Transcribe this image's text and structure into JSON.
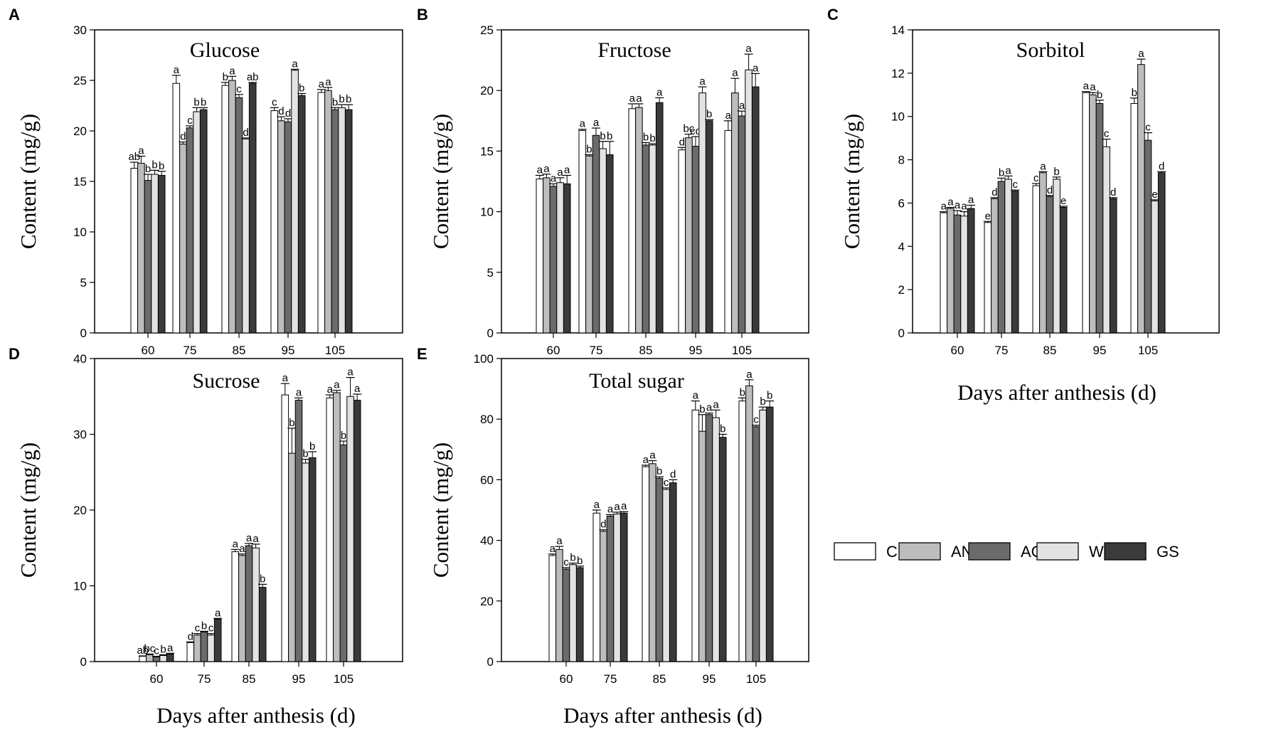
{
  "chart_data": [
    {
      "panel": "A",
      "type": "bar",
      "title": "Glucose",
      "ylabel": "Content (mg/g)",
      "xlabel": "",
      "ylim": [
        0,
        30
      ],
      "yticks": [
        0,
        5,
        10,
        15,
        20,
        25,
        30
      ],
      "categories": [
        "60",
        "75",
        "85",
        "95",
        "105"
      ],
      "series": [
        {
          "name": "CK",
          "values": [
            16.3,
            24.7,
            24.5,
            22.0,
            23.8
          ],
          "errors": [
            0.6,
            0.8,
            0.3,
            0.3,
            0.3
          ],
          "letters": [
            "ab",
            "a",
            "b",
            "c",
            "a"
          ]
        },
        {
          "name": "AN",
          "values": [
            16.8,
            18.7,
            25.0,
            21.0,
            24.0
          ],
          "errors": [
            0.7,
            0.2,
            0.4,
            0.4,
            0.3
          ],
          "letters": [
            "a",
            "d",
            "a",
            "d",
            "a"
          ]
        },
        {
          "name": "AG",
          "values": [
            15.1,
            20.3,
            23.3,
            20.9,
            22.1
          ],
          "errors": [
            0.6,
            0.2,
            0.3,
            0.3,
            0.2
          ],
          "letters": [
            "b",
            "c",
            "c",
            "d",
            "b"
          ]
        },
        {
          "name": "WG",
          "values": [
            15.7,
            21.9,
            19.2,
            26.0,
            22.3
          ],
          "errors": [
            0.4,
            0.4,
            0.1,
            0.1,
            0.3
          ],
          "letters": [
            "b",
            "b",
            "d",
            "a",
            "b"
          ]
        },
        {
          "name": "GS",
          "values": [
            15.6,
            22.1,
            24.7,
            23.5,
            22.1
          ],
          "errors": [
            0.4,
            0.2,
            0.1,
            0.2,
            0.5
          ],
          "letters": [
            "b",
            "b",
            "ab",
            "b",
            "b"
          ]
        }
      ]
    },
    {
      "panel": "B",
      "type": "bar",
      "title": "Fructose",
      "ylabel": "Content (mg/g)",
      "xlabel": "",
      "ylim": [
        0,
        25
      ],
      "yticks": [
        0,
        5,
        10,
        15,
        20,
        25
      ],
      "categories": [
        "60",
        "75",
        "85",
        "95",
        "105"
      ],
      "series": [
        {
          "name": "CK",
          "values": [
            12.7,
            16.7,
            18.5,
            15.1,
            16.7
          ],
          "errors": [
            0.3,
            0.1,
            0.4,
            0.2,
            0.8
          ],
          "letters": [
            "a",
            "a",
            "a",
            "d",
            "a"
          ]
        },
        {
          "name": "AN",
          "values": [
            12.8,
            14.6,
            18.6,
            16.1,
            19.8
          ],
          "errors": [
            0.3,
            0.1,
            0.3,
            0.3,
            1.2
          ],
          "letters": [
            "a",
            "b",
            "a",
            "bc",
            "a"
          ]
        },
        {
          "name": "AG",
          "values": [
            12.1,
            16.3,
            15.5,
            15.4,
            17.9
          ],
          "errors": [
            0.2,
            0.6,
            0.2,
            0.8,
            0.4
          ],
          "letters": [
            "a",
            "a",
            "b",
            "cd",
            "a"
          ]
        },
        {
          "name": "WG",
          "values": [
            12.4,
            15.2,
            15.5,
            19.8,
            21.7
          ],
          "errors": [
            0.4,
            0.6,
            0.1,
            0.5,
            1.3
          ],
          "letters": [
            "a",
            "b",
            "b",
            "a",
            "a"
          ]
        },
        {
          "name": "GS",
          "values": [
            12.3,
            14.7,
            19.0,
            17.5,
            20.3
          ],
          "errors": [
            0.7,
            1.1,
            0.4,
            0.1,
            1.1
          ],
          "letters": [
            "a",
            "b",
            "a",
            "b",
            "a"
          ]
        }
      ]
    },
    {
      "panel": "C",
      "type": "bar",
      "title": "Sorbitol",
      "ylabel": "Content (mg/g)",
      "xlabel": "Days after anthesis (d)",
      "ylim": [
        0,
        14
      ],
      "yticks": [
        0,
        2,
        4,
        6,
        8,
        10,
        12,
        14
      ],
      "categories": [
        "60",
        "75",
        "85",
        "95",
        "105"
      ],
      "series": [
        {
          "name": "CK",
          "values": [
            5.55,
            5.1,
            6.8,
            11.1,
            10.6
          ],
          "errors": [
            0.05,
            0.05,
            0.1,
            0.05,
            0.25
          ],
          "letters": [
            "a",
            "e",
            "c",
            "a",
            "b"
          ]
        },
        {
          "name": "AN",
          "values": [
            5.75,
            6.2,
            7.4,
            11.0,
            12.4
          ],
          "errors": [
            0.05,
            0.05,
            0.05,
            0.1,
            0.25
          ],
          "letters": [
            "a",
            "d",
            "a",
            "a",
            "a"
          ]
        },
        {
          "name": "AG",
          "values": [
            5.45,
            7.0,
            6.3,
            10.6,
            8.9
          ],
          "errors": [
            0.2,
            0.15,
            0.05,
            0.15,
            0.35
          ],
          "letters": [
            "a",
            "b",
            "d",
            "b",
            "c"
          ]
        },
        {
          "name": "WG",
          "values": [
            5.4,
            7.1,
            7.1,
            8.6,
            6.1
          ],
          "errors": [
            0.2,
            0.15,
            0.1,
            0.35,
            0.05
          ],
          "letters": [
            "a",
            "a",
            "b",
            "c",
            "e"
          ]
        },
        {
          "name": "GS",
          "values": [
            5.75,
            6.55,
            5.8,
            6.2,
            7.4
          ],
          "errors": [
            0.15,
            0.05,
            0.05,
            0.05,
            0.05
          ],
          "letters": [
            "a",
            "c",
            "e",
            "d",
            "d"
          ]
        }
      ]
    },
    {
      "panel": "D",
      "type": "bar",
      "title": "Sucrose",
      "ylabel": "Content (mg/g)",
      "xlabel": "Days after anthesis (d)",
      "ylim": [
        0,
        40
      ],
      "yticks": [
        0,
        10,
        20,
        30,
        40
      ],
      "categories": [
        "60",
        "75",
        "85",
        "95",
        "105"
      ],
      "series": [
        {
          "name": "CK",
          "values": [
            0.7,
            2.5,
            14.5,
            35.2,
            34.8
          ],
          "errors": [
            0.05,
            0.1,
            0.3,
            1.5,
            0.4
          ],
          "letters": [
            "ab",
            "d",
            "a",
            "a",
            "a"
          ]
        },
        {
          "name": "AN",
          "values": [
            0.9,
            3.5,
            14.0,
            27.5,
            35.5
          ],
          "errors": [
            0.1,
            0.2,
            0.2,
            3.3,
            0.3
          ],
          "letters": [
            "bc",
            "c",
            "a",
            "b",
            "a"
          ]
        },
        {
          "name": "AG",
          "values": [
            0.6,
            3.9,
            15.3,
            34.5,
            28.6
          ],
          "errors": [
            0.1,
            0.1,
            0.3,
            0.3,
            0.5
          ],
          "letters": [
            "c",
            "b",
            "a",
            "a",
            "b"
          ]
        },
        {
          "name": "WG",
          "values": [
            0.8,
            3.5,
            15.0,
            26.2,
            35.0
          ],
          "errors": [
            0.1,
            0.2,
            0.5,
            0.5,
            2.5
          ],
          "letters": [
            "b",
            "c",
            "a",
            "b",
            "a"
          ]
        },
        {
          "name": "GS",
          "values": [
            1.0,
            5.6,
            9.8,
            26.9,
            34.5
          ],
          "errors": [
            0.1,
            0.1,
            0.4,
            0.8,
            0.8
          ],
          "letters": [
            "a",
            "a",
            "b",
            "b",
            "a"
          ]
        }
      ]
    },
    {
      "panel": "E",
      "type": "bar",
      "title": "Total sugar",
      "ylabel": "Content (mg/g)",
      "xlabel": "Days after anthesis (d)",
      "ylim": [
        0,
        100
      ],
      "yticks": [
        0,
        20,
        40,
        60,
        80,
        100
      ],
      "categories": [
        "60",
        "75",
        "85",
        "95",
        "105"
      ],
      "series": [
        {
          "name": "CK",
          "values": [
            35.0,
            49.0,
            64.3,
            83.0,
            86.0
          ],
          "errors": [
            0.5,
            1.0,
            0.5,
            3.0,
            1.0
          ],
          "letters": [
            "a",
            "a",
            "a",
            "a",
            "b"
          ]
        },
        {
          "name": "AN",
          "values": [
            37.0,
            43.0,
            65.3,
            76.0,
            91.0
          ],
          "errors": [
            1.0,
            0.5,
            1.0,
            5.5,
            2.0
          ],
          "letters": [
            "a",
            "d",
            "a",
            "b",
            "a"
          ]
        },
        {
          "name": "AG",
          "values": [
            30.5,
            48.0,
            60.5,
            81.5,
            77.5
          ],
          "errors": [
            0.5,
            0.5,
            0.5,
            0.5,
            0.5
          ],
          "letters": [
            "c",
            "a",
            "b",
            "a",
            "c"
          ]
        },
        {
          "name": "WG",
          "values": [
            32.0,
            48.7,
            56.8,
            80.5,
            83.0
          ],
          "errors": [
            0.5,
            0.6,
            0.5,
            2.5,
            1.0
          ],
          "letters": [
            "b",
            "a",
            "c",
            "a",
            "b"
          ]
        },
        {
          "name": "GS",
          "values": [
            31.0,
            49.0,
            59.0,
            74.0,
            84.0
          ],
          "errors": [
            0.5,
            0.5,
            1.0,
            1.0,
            2.0
          ],
          "letters": [
            "b",
            "a",
            "d",
            "b",
            "b"
          ]
        }
      ]
    }
  ],
  "legend": [
    {
      "name": "CK",
      "color": "#ffffff"
    },
    {
      "name": "AN",
      "color": "#bdbdbd"
    },
    {
      "name": "AG",
      "color": "#6b6b6b"
    },
    {
      "name": "WG",
      "color": "#e3e3e3"
    },
    {
      "name": "GS",
      "color": "#3a3a3a"
    }
  ]
}
